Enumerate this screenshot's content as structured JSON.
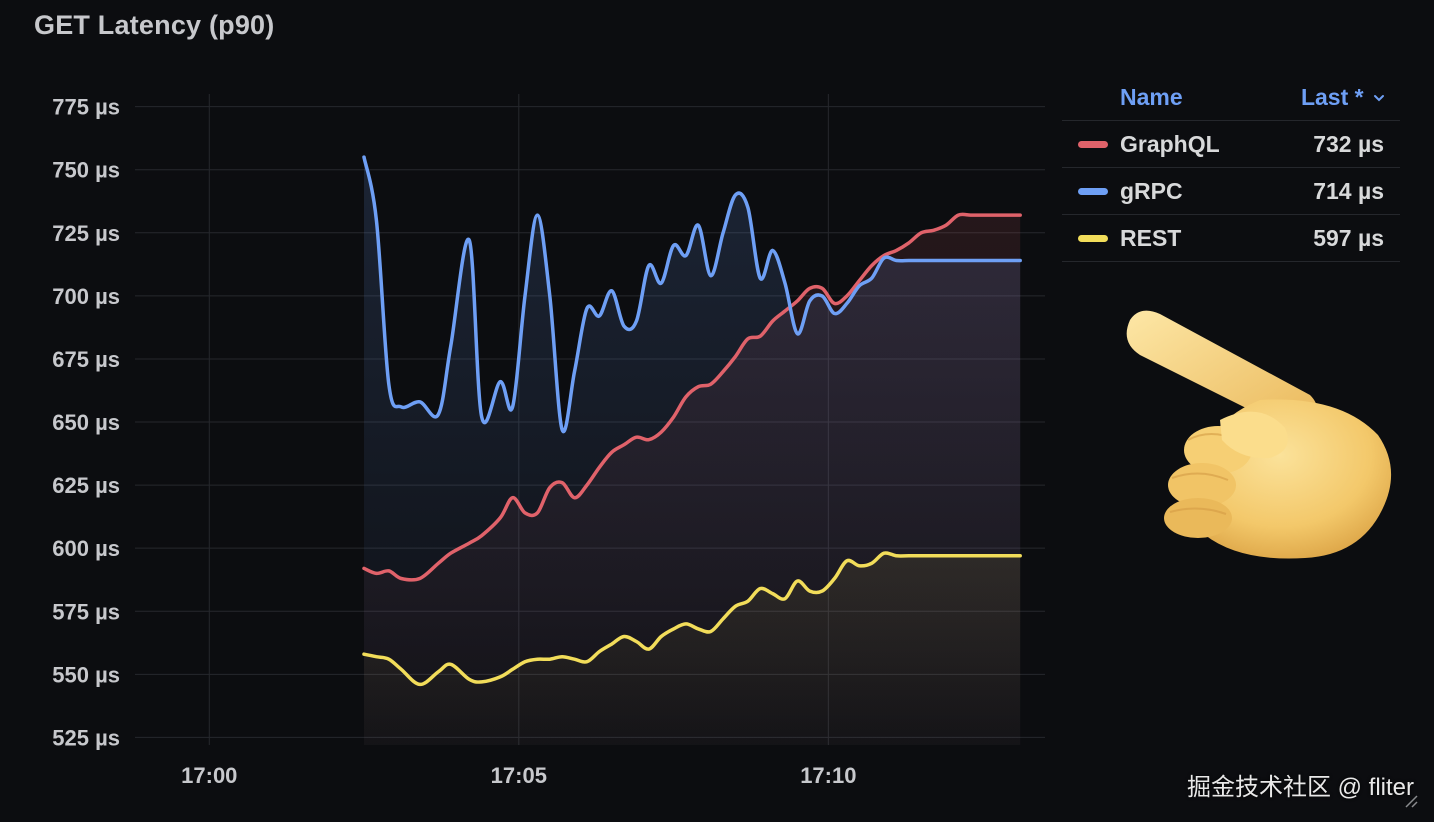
{
  "panel": {
    "title": "GET Latency (p90)"
  },
  "legend": {
    "header_name": "Name",
    "header_last": "Last *",
    "items": [
      {
        "name": "GraphQL",
        "last": "732 µs",
        "color": "#e0626a"
      },
      {
        "name": "gRPC",
        "last": "714 µs",
        "color": "#6e9ff5"
      },
      {
        "name": "REST",
        "last": "597 µs",
        "color": "#f2dd5a"
      }
    ]
  },
  "watermark": "掘金技术社区 @ fliter",
  "icons": {
    "hand": "pointing-hand-emoji",
    "sort": "chevron-down-icon",
    "resize": "resize-corner-icon"
  },
  "chart_data": {
    "type": "line",
    "xlabel": "",
    "ylabel": "",
    "x_ticks": [
      "17:00",
      "17:05",
      "17:10"
    ],
    "x_tick_minutes": [
      0,
      5,
      10
    ],
    "x_range_minutes": [
      -1.2,
      13.5
    ],
    "y_ticks": [
      525,
      550,
      575,
      600,
      625,
      650,
      675,
      700,
      725,
      750,
      775
    ],
    "y_tick_unit": "µs",
    "ylim": [
      522,
      780
    ],
    "grid": true,
    "legend_position": "right",
    "x_minutes": [
      2.5,
      2.7,
      2.9,
      3.1,
      3.4,
      3.7,
      3.9,
      4.2,
      4.4,
      4.7,
      4.9,
      5.1,
      5.3,
      5.5,
      5.7,
      5.9,
      6.1,
      6.3,
      6.5,
      6.7,
      6.9,
      7.1,
      7.3,
      7.5,
      7.7,
      7.9,
      8.1,
      8.3,
      8.5,
      8.7,
      8.9,
      9.1,
      9.3,
      9.5,
      9.7,
      9.9,
      10.1,
      10.3,
      10.5,
      10.7,
      10.9,
      11.1,
      11.3,
      11.5,
      11.7,
      11.9,
      12.1,
      12.3,
      12.5,
      12.7,
      12.9,
      13.1
    ],
    "series": [
      {
        "name": "GraphQL",
        "color": "#e0626a",
        "values": [
          592,
          590,
          591,
          588,
          588,
          594,
          598,
          602,
          605,
          612,
          620,
          614,
          614,
          624,
          626,
          620,
          625,
          632,
          638,
          641,
          644,
          643,
          646,
          652,
          660,
          664,
          665,
          670,
          676,
          683,
          684,
          690,
          694,
          698,
          703,
          703,
          697,
          700,
          706,
          712,
          716,
          718,
          721,
          725,
          726,
          728,
          732,
          732,
          732,
          732,
          732,
          732
        ]
      },
      {
        "name": "gRPC",
        "color": "#6e9ff5",
        "values": [
          755,
          730,
          665,
          656,
          658,
          653,
          680,
          722,
          652,
          666,
          656,
          700,
          732,
          700,
          647,
          670,
          695,
          692,
          702,
          688,
          690,
          712,
          705,
          720,
          716,
          728,
          708,
          725,
          740,
          735,
          707,
          718,
          705,
          685,
          698,
          700,
          693,
          697,
          704,
          707,
          715,
          714,
          714,
          714,
          714,
          714,
          714,
          714,
          714,
          714,
          714,
          714
        ]
      },
      {
        "name": "REST",
        "color": "#f2dd5a",
        "values": [
          558,
          557,
          556,
          552,
          546,
          551,
          554,
          548,
          547,
          549,
          552,
          555,
          556,
          556,
          557,
          556,
          555,
          559,
          562,
          565,
          563,
          560,
          565,
          568,
          570,
          568,
          567,
          572,
          577,
          579,
          584,
          582,
          580,
          587,
          583,
          583,
          588,
          595,
          593,
          594,
          598,
          597,
          597,
          597,
          597,
          597,
          597,
          597,
          597,
          597,
          597,
          597
        ]
      }
    ]
  }
}
